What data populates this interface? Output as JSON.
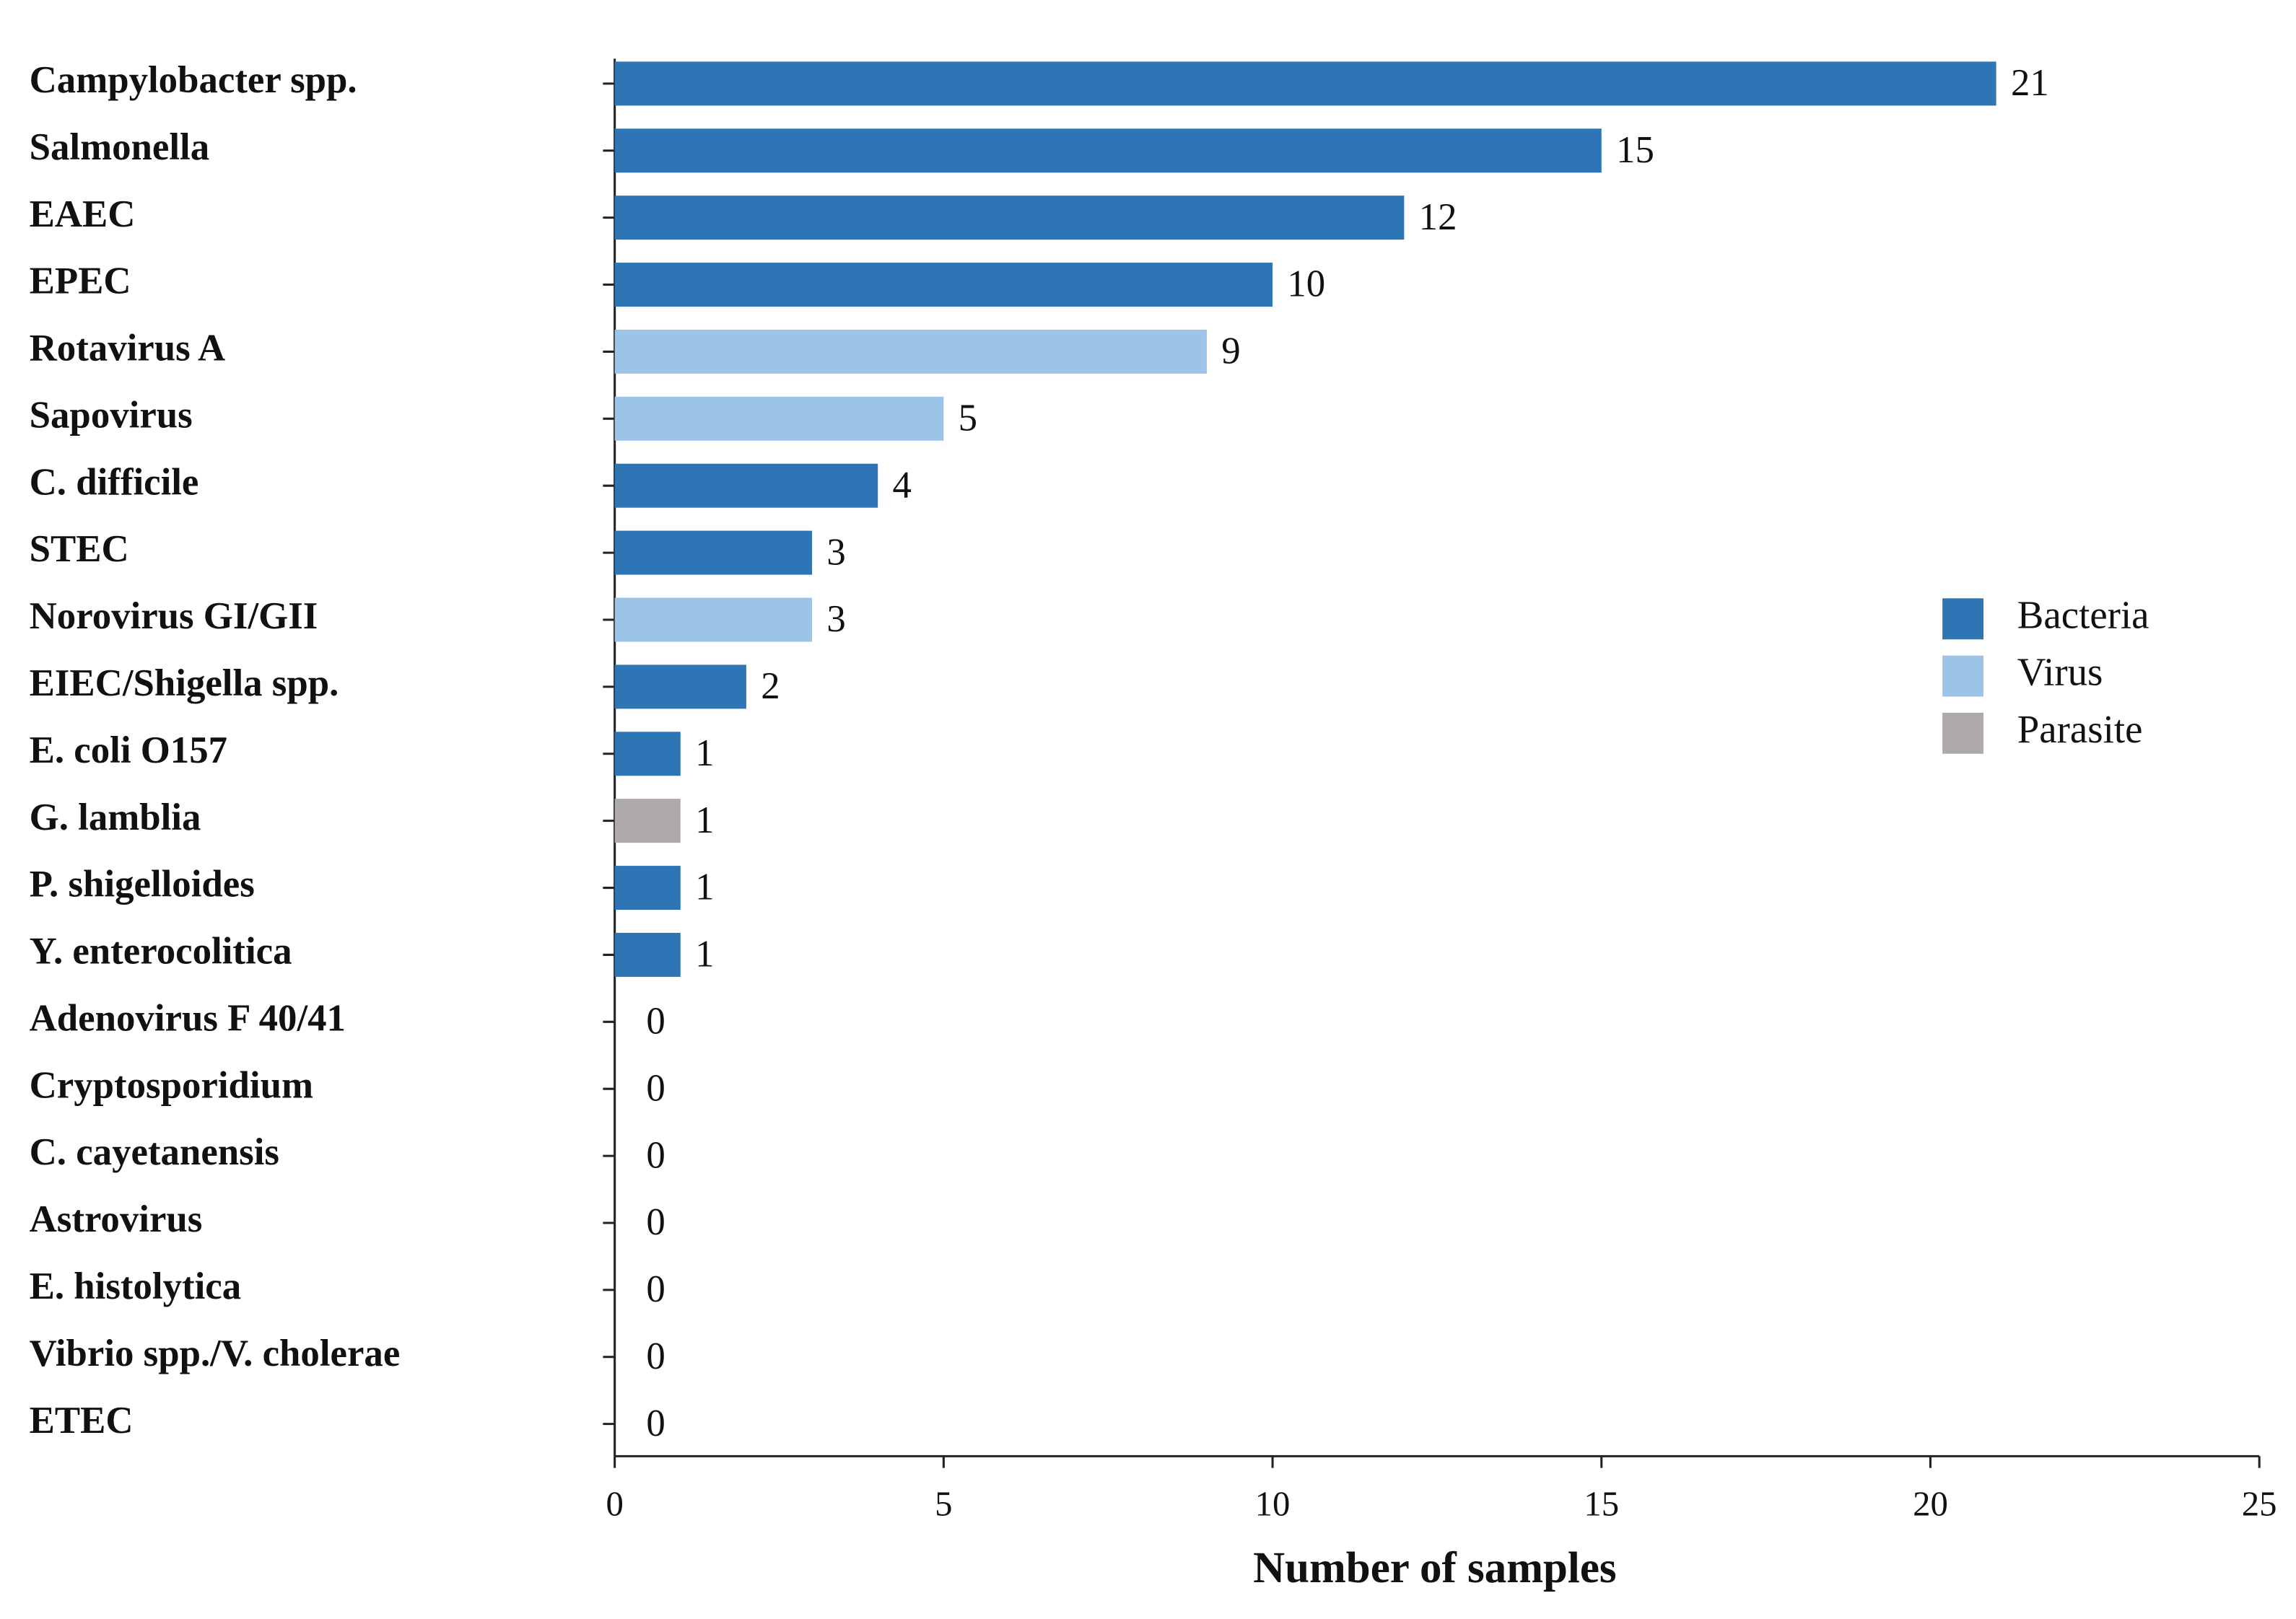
{
  "chart_data": {
    "type": "hbar",
    "xlabel": "Number  of samples",
    "categories": [
      "Campylobacter spp.",
      "Salmonella",
      "EAEC",
      "EPEC",
      "Rotavirus A",
      "Sapovirus",
      "C. difficile",
      "STEC",
      "Norovirus GI/GII",
      "EIEC/Shigella spp.",
      "E. coli O157",
      "G. lamblia",
      "P. shigelloides",
      "Y. enterocolitica",
      "Adenovirus F 40/41",
      "Cryptosporidium",
      "C. cayetanensis",
      "Astrovirus",
      "E. histolytica",
      "Vibrio spp./V. cholerae",
      "ETEC"
    ],
    "values": [
      21,
      15,
      12,
      10,
      9,
      5,
      4,
      3,
      3,
      2,
      1,
      1,
      1,
      1,
      0,
      0,
      0,
      0,
      0,
      0,
      0
    ],
    "colors": [
      "#2e75b6",
      "#2e75b6",
      "#2e75b6",
      "#2e75b6",
      "#9dc3e6",
      "#9dc3e6",
      "#2e75b6",
      "#2e75b6",
      "#9dc3e6",
      "#2e75b6",
      "#2e75b6",
      "#aeaaaa",
      "#2e75b6",
      "#2e75b6",
      "#9dc3e6",
      "#aeaaaa",
      "#aeaaaa",
      "#9dc3e6",
      "#aeaaaa",
      "#2e75b6",
      "#2e75b6"
    ],
    "legend": [
      {
        "name": "Bacteria",
        "color": "#2e75b6"
      },
      {
        "name": "Virus",
        "color": "#9dc3e6"
      },
      {
        "name": "Parasite",
        "color": "#aeaaaa"
      }
    ],
    "xlim": [
      0,
      25
    ],
    "xticks": [
      0,
      5,
      10,
      15,
      20,
      25
    ]
  }
}
